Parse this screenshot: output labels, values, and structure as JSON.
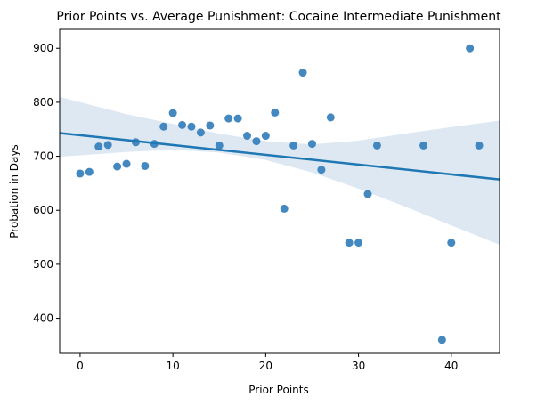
{
  "chart_data": {
    "type": "scatter",
    "title": "Prior Points vs. Average Punishment: Cocaine Intermediate Punishment",
    "xlabel": "Prior Points",
    "ylabel": "Probation in Days",
    "xlim": [
      -2.2,
      45.2
    ],
    "ylim": [
      335,
      935
    ],
    "xticks": [
      0,
      10,
      20,
      30,
      40
    ],
    "yticks": [
      400,
      500,
      600,
      700,
      800,
      900
    ],
    "grid": false,
    "legend": "none",
    "colors": {
      "points": "#3a82bd",
      "line": "#1f77b4",
      "band": "#dde8f3"
    },
    "points": [
      {
        "x": 0,
        "y": 668
      },
      {
        "x": 1,
        "y": 671
      },
      {
        "x": 2,
        "y": 718
      },
      {
        "x": 3,
        "y": 721
      },
      {
        "x": 4,
        "y": 681
      },
      {
        "x": 5,
        "y": 686
      },
      {
        "x": 6,
        "y": 726
      },
      {
        "x": 7,
        "y": 682
      },
      {
        "x": 8,
        "y": 723
      },
      {
        "x": 9,
        "y": 755
      },
      {
        "x": 10,
        "y": 780
      },
      {
        "x": 11,
        "y": 758
      },
      {
        "x": 12,
        "y": 755
      },
      {
        "x": 13,
        "y": 744
      },
      {
        "x": 14,
        "y": 757
      },
      {
        "x": 15,
        "y": 720
      },
      {
        "x": 16,
        "y": 770
      },
      {
        "x": 17,
        "y": 770
      },
      {
        "x": 18,
        "y": 738
      },
      {
        "x": 19,
        "y": 728
      },
      {
        "x": 20,
        "y": 738
      },
      {
        "x": 21,
        "y": 781
      },
      {
        "x": 22,
        "y": 603
      },
      {
        "x": 23,
        "y": 720
      },
      {
        "x": 24,
        "y": 855
      },
      {
        "x": 25,
        "y": 723
      },
      {
        "x": 26,
        "y": 675
      },
      {
        "x": 27,
        "y": 772
      },
      {
        "x": 29,
        "y": 540
      },
      {
        "x": 30,
        "y": 540
      },
      {
        "x": 31,
        "y": 630
      },
      {
        "x": 32,
        "y": 720
      },
      {
        "x": 37,
        "y": 720
      },
      {
        "x": 39,
        "y": 360
      },
      {
        "x": 40,
        "y": 540
      },
      {
        "x": 42,
        "y": 900
      },
      {
        "x": 43,
        "y": 720
      }
    ],
    "regression": {
      "x": [
        -2.2,
        45.2
      ],
      "y": [
        743,
        657
      ]
    },
    "confidence_band": {
      "x": [
        -2.2,
        5,
        10,
        15,
        20,
        25,
        30,
        35,
        40,
        45.2
      ],
      "upper": [
        810,
        778,
        760,
        742,
        728,
        722,
        729,
        742,
        754,
        766
      ],
      "lower": [
        699,
        708,
        712,
        707,
        693,
        670,
        640,
        607,
        572,
        536
      ]
    }
  }
}
